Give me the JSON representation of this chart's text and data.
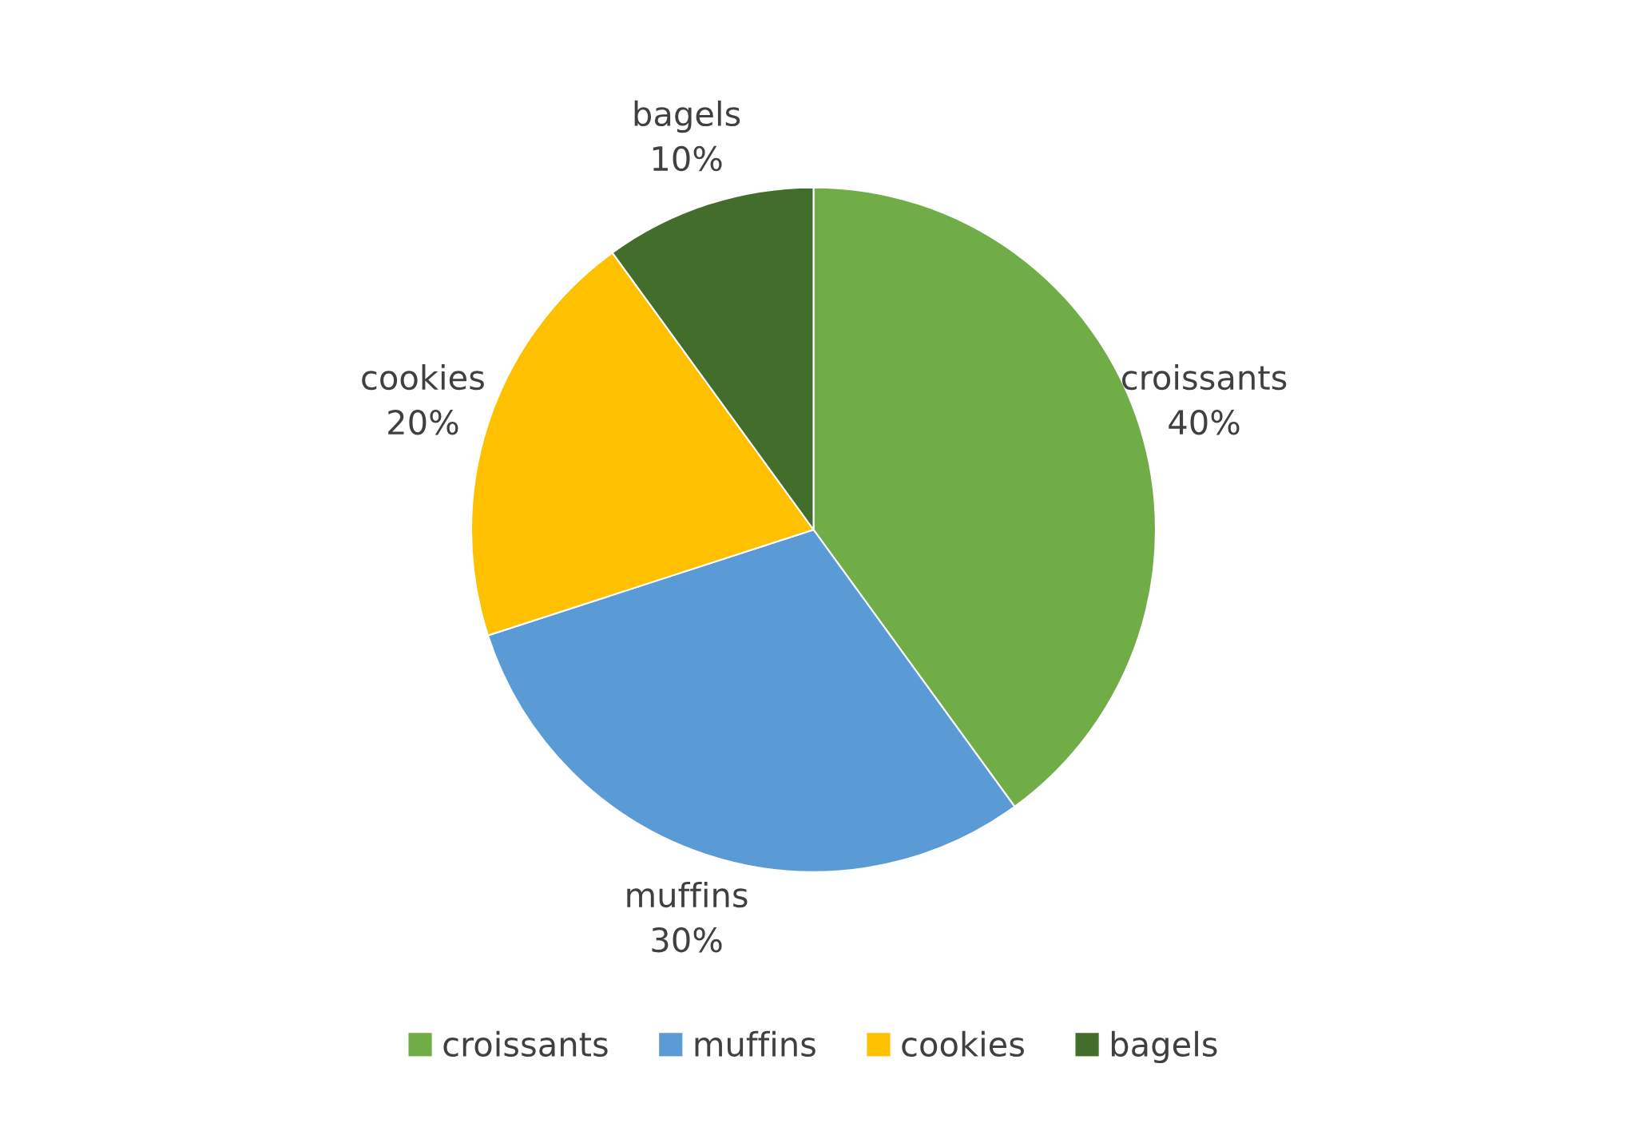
{
  "chart_data": {
    "type": "pie",
    "categories": [
      "croissants",
      "muffins",
      "cookies",
      "bagels"
    ],
    "values": [
      40,
      30,
      20,
      10
    ],
    "value_labels": [
      "40%",
      "30%",
      "20%",
      "10%"
    ],
    "colors": [
      "#70ad47",
      "#5b9bd5",
      "#ffc000",
      "#436d2b"
    ],
    "legend": "bottom"
  }
}
